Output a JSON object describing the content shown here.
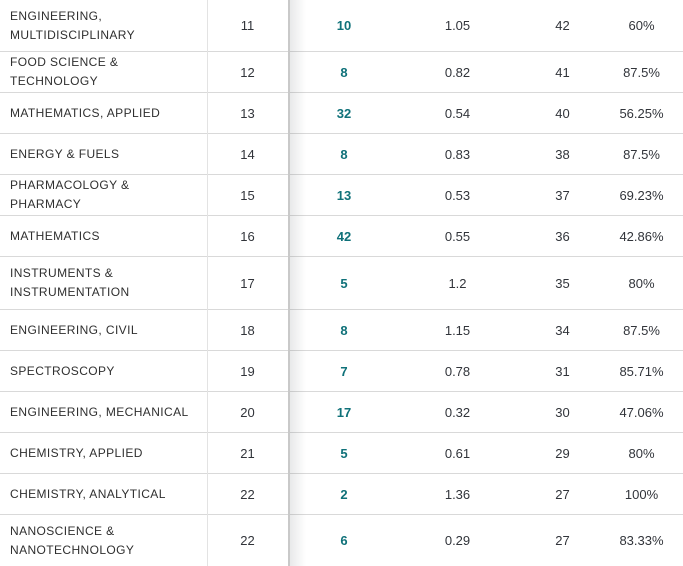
{
  "colors": {
    "link_teal": "#0f7179",
    "row_border": "#d9d9d9",
    "divider_gray": "#c9c9c9",
    "text_dark": "#2f2f2f"
  },
  "rows": [
    {
      "category": "ENGINEERING, MULTIDISCIPLINARY",
      "rank": "11",
      "documents": "10",
      "impact": "1.05",
      "total": "42",
      "percent": "60%"
    },
    {
      "category": "FOOD SCIENCE & TECHNOLOGY",
      "rank": "12",
      "documents": "8",
      "impact": "0.82",
      "total": "41",
      "percent": "87.5%"
    },
    {
      "category": "MATHEMATICS, APPLIED",
      "rank": "13",
      "documents": "32",
      "impact": "0.54",
      "total": "40",
      "percent": "56.25%"
    },
    {
      "category": "ENERGY & FUELS",
      "rank": "14",
      "documents": "8",
      "impact": "0.83",
      "total": "38",
      "percent": "87.5%"
    },
    {
      "category": "PHARMACOLOGY & PHARMACY",
      "rank": "15",
      "documents": "13",
      "impact": "0.53",
      "total": "37",
      "percent": "69.23%"
    },
    {
      "category": "MATHEMATICS",
      "rank": "16",
      "documents": "42",
      "impact": "0.55",
      "total": "36",
      "percent": "42.86%"
    },
    {
      "category": "INSTRUMENTS & INSTRUMENTATION",
      "rank": "17",
      "documents": "5",
      "impact": "1.2",
      "total": "35",
      "percent": "80%"
    },
    {
      "category": "ENGINEERING, CIVIL",
      "rank": "18",
      "documents": "8",
      "impact": "1.15",
      "total": "34",
      "percent": "87.5%"
    },
    {
      "category": "SPECTROSCOPY",
      "rank": "19",
      "documents": "7",
      "impact": "0.78",
      "total": "31",
      "percent": "85.71%"
    },
    {
      "category": "ENGINEERING, MECHANICAL",
      "rank": "20",
      "documents": "17",
      "impact": "0.32",
      "total": "30",
      "percent": "47.06%"
    },
    {
      "category": "CHEMISTRY, APPLIED",
      "rank": "21",
      "documents": "5",
      "impact": "0.61",
      "total": "29",
      "percent": "80%"
    },
    {
      "category": "CHEMISTRY, ANALYTICAL",
      "rank": "22",
      "documents": "2",
      "impact": "1.36",
      "total": "27",
      "percent": "100%"
    },
    {
      "category": "NANOSCIENCE & NANOTECHNOLOGY",
      "rank": "22",
      "documents": "6",
      "impact": "0.29",
      "total": "27",
      "percent": "83.33%"
    }
  ]
}
